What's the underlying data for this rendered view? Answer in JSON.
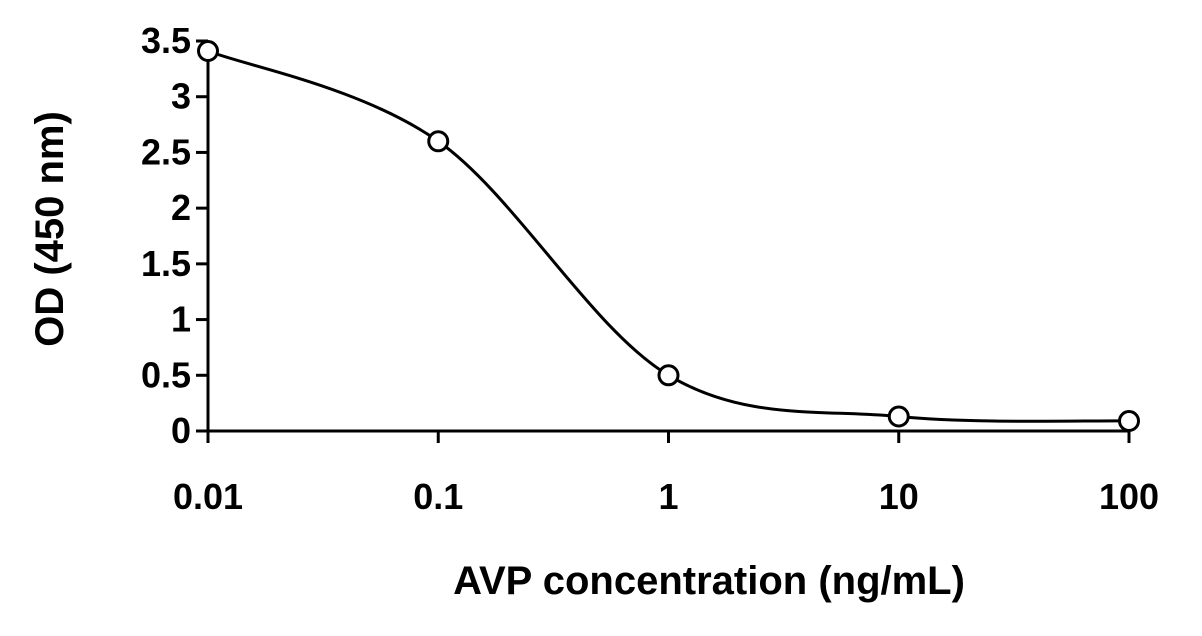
{
  "chart_data": {
    "type": "line",
    "title": "",
    "xlabel": "AVP concentration (ng/mL)",
    "ylabel": "OD (450 nm)",
    "x_scale": "log",
    "xlim": [
      0.01,
      100
    ],
    "ylim": [
      0,
      3.5
    ],
    "x_ticks": [
      0.01,
      0.1,
      1,
      10,
      100
    ],
    "x_tick_labels": [
      "0.01",
      "0.1",
      "1",
      "10",
      "100"
    ],
    "y_ticks": [
      0,
      0.5,
      1,
      1.5,
      2,
      2.5,
      3,
      3.5
    ],
    "y_tick_labels": [
      "0",
      "0.5",
      "1",
      "1.5",
      "2",
      "2.5",
      "3",
      "3.5"
    ],
    "grid": false,
    "legend": "none",
    "series": [
      {
        "marker": "open-circle",
        "x": [
          0.01,
          0.1,
          1,
          10,
          100
        ],
        "y": [
          3.41,
          2.6,
          0.5,
          0.13,
          0.09
        ]
      }
    ],
    "colors": {
      "line": "#000000",
      "marker_fill": "#ffffff",
      "axis": "#000000"
    }
  }
}
